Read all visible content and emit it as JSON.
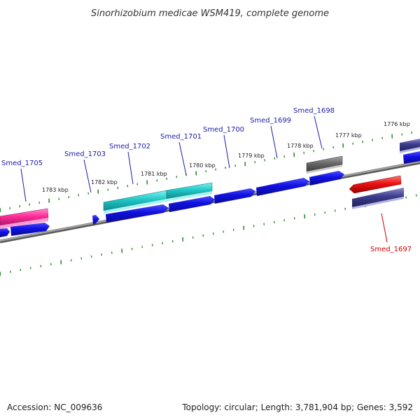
{
  "title": "Sinorhizobium medicae WSM419, complete genome",
  "footer": {
    "accession": "Accession: NC_009636",
    "summary": "Topology: circular; Length: 3,781,904 bp; Genes: 3,592"
  },
  "colors": {
    "background": "#ffffff",
    "backbone": "#8a8a8a",
    "tick": "#2e8b2e",
    "gene_label": "#1a1aaa",
    "highlight_label": "#cc0000",
    "blue_gene": "#1010e0",
    "cyan_gene": "#20c8c8",
    "pink_gene": "#ff2e9a",
    "gray_gene": "#6a6a6a",
    "red_gene": "#ee1111",
    "navy_gene": "#3c3c8c"
  },
  "kbp_labels": [
    "1783 kbp",
    "1782 kbp",
    "1781 kbp",
    "1780 kbp",
    "1779 kbp",
    "1778 kbp",
    "1777 kbp",
    "1776 kbp"
  ],
  "genes": [
    {
      "name": "Smed_1705",
      "color": "pink_gene"
    },
    {
      "name": "Smed_1703",
      "color": "blue_gene"
    },
    {
      "name": "Smed_1702",
      "color": "cyan_gene"
    },
    {
      "name": "Smed_1701",
      "color": "cyan_gene"
    },
    {
      "name": "Smed_1700",
      "color": "blue_gene"
    },
    {
      "name": "Smed_1699",
      "color": "blue_gene"
    },
    {
      "name": "Smed_1698",
      "color": "gray_gene"
    },
    {
      "name": "Smed_1697",
      "color": "red_gene",
      "highlight": true
    }
  ]
}
